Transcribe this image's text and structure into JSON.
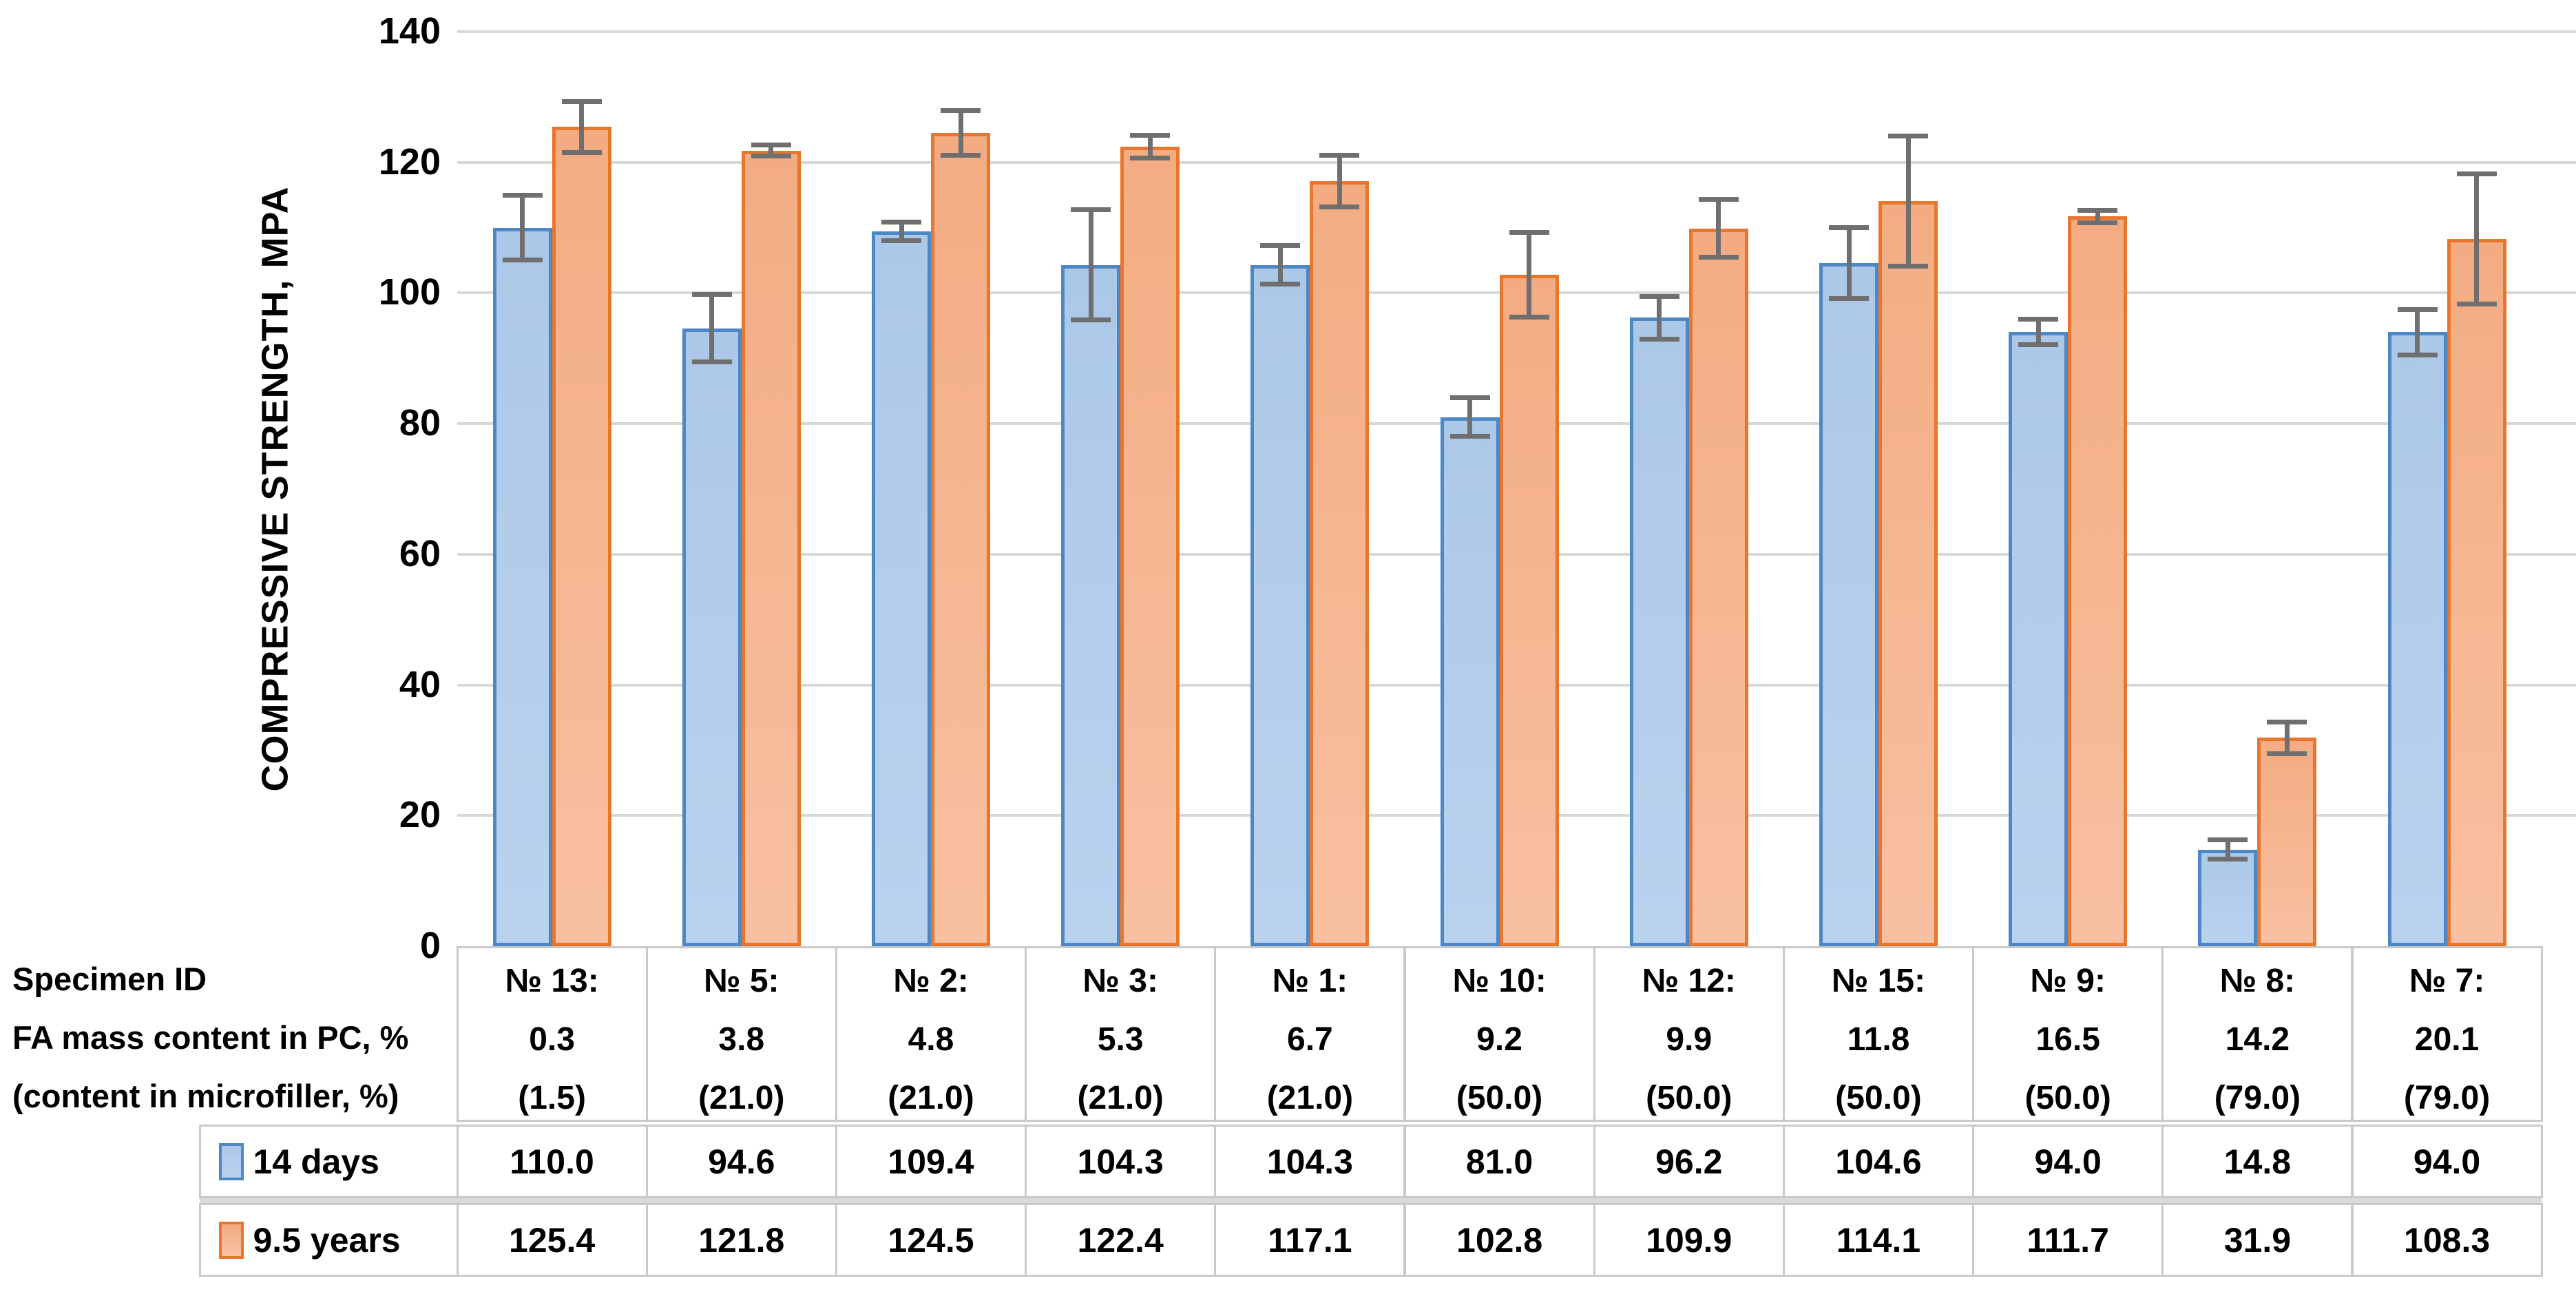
{
  "chart_data": {
    "type": "bar",
    "title": "",
    "ylabel": "COMPRESSIVE STRENGTH, MPA",
    "xlabel": "",
    "caption_lines": [
      "Specimen ID",
      "FA mass content in PC, %",
      "(content in microfiller, %)"
    ],
    "ylim": [
      0,
      140
    ],
    "yticks": [
      0,
      20,
      40,
      60,
      80,
      100,
      120,
      140
    ],
    "grid": true,
    "legend_position": "table-left",
    "categories": [
      {
        "id": "№ 13:",
        "fa_content": "0.3",
        "microfiller": "(1.5)"
      },
      {
        "id": "№ 5:",
        "fa_content": "3.8",
        "microfiller": "(21.0)"
      },
      {
        "id": "№ 2:",
        "fa_content": "4.8",
        "microfiller": "(21.0)"
      },
      {
        "id": "№ 3:",
        "fa_content": "5.3",
        "microfiller": "(21.0)"
      },
      {
        "id": "№ 1:",
        "fa_content": "6.7",
        "microfiller": "(21.0)"
      },
      {
        "id": "№ 10:",
        "fa_content": "9.2",
        "microfiller": "(50.0)"
      },
      {
        "id": "№ 12:",
        "fa_content": "9.9",
        "microfiller": "(50.0)"
      },
      {
        "id": "№ 15:",
        "fa_content": "11.8",
        "microfiller": "(50.0)"
      },
      {
        "id": "№ 9:",
        "fa_content": "16.5",
        "microfiller": "(50.0)"
      },
      {
        "id": "№ 8:",
        "fa_content": "14.2",
        "microfiller": "(79.0)"
      },
      {
        "id": "№ 7:",
        "fa_content": "20.1",
        "microfiller": "(79.0)"
      }
    ],
    "series": [
      {
        "name": "14 days",
        "fill_top": "#ACC8E8",
        "fill_bottom": "#BAD2EE",
        "border": "#4E87C6",
        "values": [
          110.0,
          94.6,
          109.4,
          104.3,
          104.3,
          81.0,
          96.2,
          104.6,
          94.0,
          14.8,
          94.0
        ],
        "error_bars": [
          5.0,
          5.2,
          1.5,
          8.5,
          3.0,
          3.0,
          3.3,
          5.5,
          2.0,
          1.5,
          3.5
        ]
      },
      {
        "name": "9.5 years",
        "fill_top": "#F3AC82",
        "fill_bottom": "#F8C0A1",
        "border": "#E8762C",
        "values": [
          125.4,
          121.8,
          124.5,
          122.4,
          117.1,
          102.8,
          109.9,
          114.1,
          111.7,
          31.9,
          108.3
        ],
        "error_bars": [
          4.0,
          0.9,
          3.5,
          1.8,
          4.0,
          6.5,
          4.5,
          10.0,
          1.0,
          2.5,
          10.0
        ]
      }
    ],
    "error_bar_color": "#6F6F6F",
    "gridline_color": "#D8D8D8",
    "table_border_color": "#C9C9C9"
  }
}
